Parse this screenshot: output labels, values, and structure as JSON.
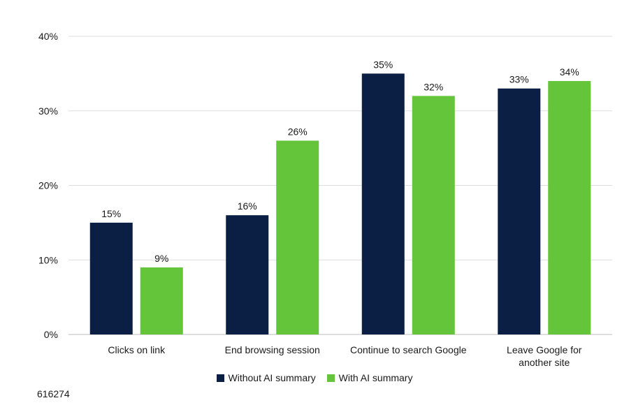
{
  "chart_data": {
    "type": "bar",
    "title": "",
    "xlabel": "",
    "ylabel": "",
    "ylim": [
      0,
      40
    ],
    "yticks": [
      "0%",
      "10%",
      "20%",
      "30%",
      "40%"
    ],
    "categories": [
      [
        "Clicks on link"
      ],
      [
        "End browsing session"
      ],
      [
        "Continue to search Google"
      ],
      [
        "Leave Google for",
        "another site"
      ]
    ],
    "series": [
      {
        "name": "Without AI summary",
        "color": "#0b1f44",
        "values": [
          15,
          16,
          35,
          33
        ],
        "labels": [
          "15%",
          "16%",
          "35%",
          "33%"
        ]
      },
      {
        "name": "With AI summary",
        "color": "#64c43a",
        "values": [
          9,
          26,
          32,
          34
        ],
        "labels": [
          "9%",
          "26%",
          "32%",
          "34%"
        ]
      }
    ],
    "legend": "bottom-center",
    "grid": true
  },
  "footer": {
    "id": "616274"
  }
}
